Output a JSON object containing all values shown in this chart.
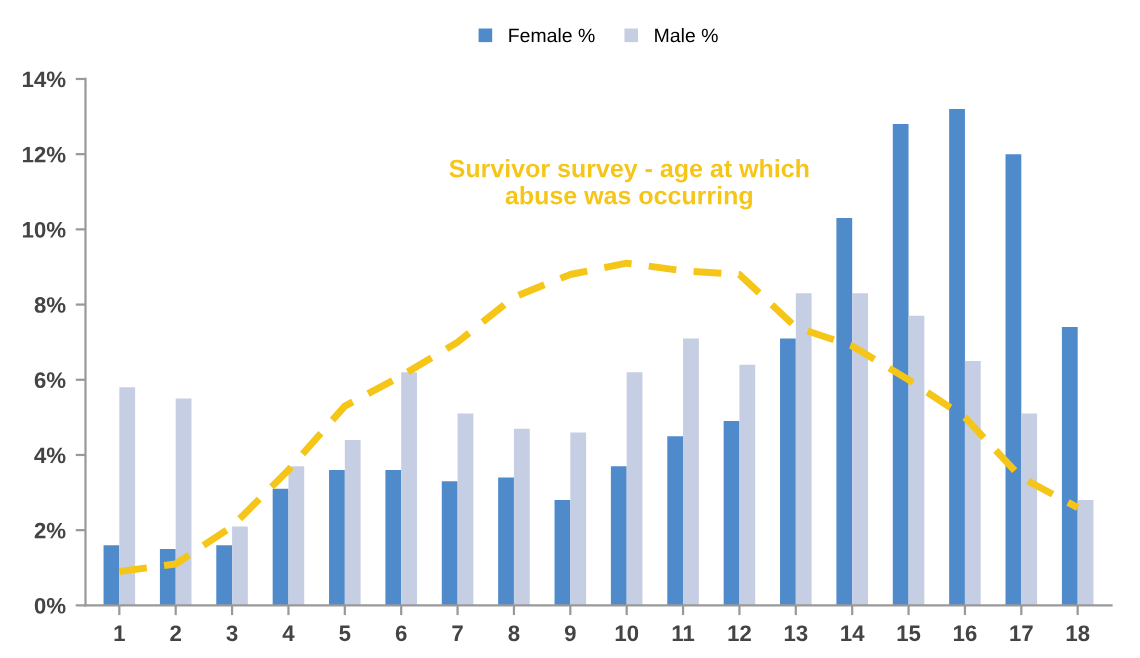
{
  "chart_data": {
    "type": "bar",
    "categories": [
      "1",
      "2",
      "3",
      "4",
      "5",
      "6",
      "7",
      "8",
      "9",
      "10",
      "11",
      "12",
      "13",
      "14",
      "15",
      "16",
      "17",
      "18"
    ],
    "series": [
      {
        "name": "Female %",
        "color": "#4f8bcb",
        "values": [
          1.6,
          1.5,
          1.6,
          3.1,
          3.6,
          3.6,
          3.3,
          3.4,
          2.8,
          3.7,
          4.5,
          4.9,
          7.1,
          10.3,
          12.8,
          13.2,
          12.0,
          7.4
        ]
      },
      {
        "name": "Male %",
        "color": "#c6cee4",
        "values": [
          5.8,
          5.5,
          2.1,
          3.7,
          4.4,
          6.2,
          5.1,
          4.7,
          4.6,
          6.2,
          7.1,
          6.4,
          8.3,
          8.3,
          7.7,
          6.5,
          5.1,
          2.8
        ]
      },
      {
        "type": "line",
        "color": "#f5c518",
        "line_style": "dashed",
        "values": [
          0.9,
          1.1,
          2.1,
          3.6,
          5.3,
          6.1,
          7.0,
          8.2,
          8.8,
          9.1,
          8.9,
          8.8,
          7.4,
          6.9,
          6.0,
          5.0,
          3.4,
          2.6
        ]
      }
    ],
    "ylim": [
      0,
      14
    ],
    "yticks": [
      {
        "value": 0,
        "label": "0%"
      },
      {
        "value": 2,
        "label": "2%"
      },
      {
        "value": 4,
        "label": "4%"
      },
      {
        "value": 6,
        "label": "6%"
      },
      {
        "value": 8,
        "label": "8%"
      },
      {
        "value": 10,
        "label": "10%"
      },
      {
        "value": 12,
        "label": "12%"
      },
      {
        "value": 14,
        "label": "14%"
      }
    ],
    "annotations": [
      "Survivor survey - age at which\nabuse was occurring"
    ],
    "grid": false,
    "legend": "top"
  }
}
